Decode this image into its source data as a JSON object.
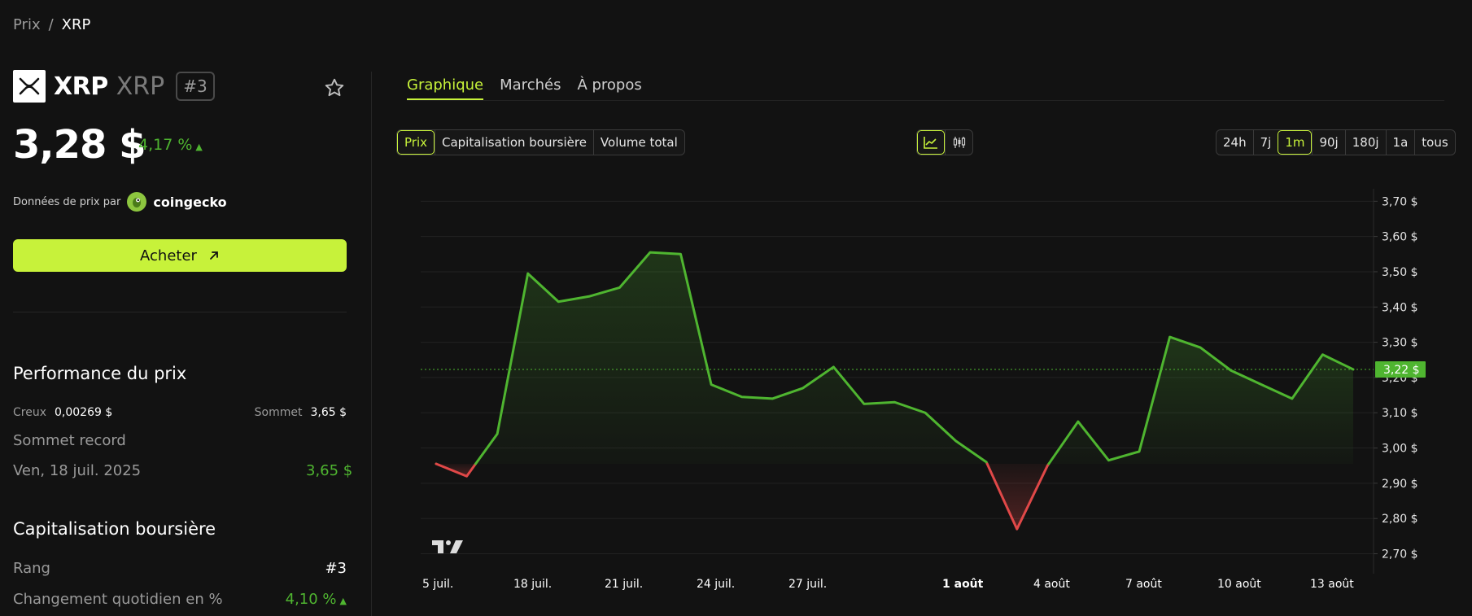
{
  "breadcrumb": {
    "parent": "Prix",
    "separator": "/",
    "current": "XRP"
  },
  "coin": {
    "name": "XRP",
    "symbol": "XRP",
    "rank_badge": "#3",
    "logo_icon": "xrp-logo-icon",
    "favorite_icon": "star-icon"
  },
  "price": {
    "value": "3,28 $",
    "change": "4,17 %",
    "change_arrow": "▲",
    "change_color": "#4fb530"
  },
  "data_source": {
    "label": "Données de prix par",
    "provider": "coingecko",
    "provider_icon": "coingecko-icon"
  },
  "buy": {
    "label": "Acheter",
    "icon": "arrow-up-right-icon",
    "color": "#c7f23a"
  },
  "performance": {
    "title": "Performance du prix",
    "low_label": "Creux",
    "low_value": "0,00269 $",
    "high_label": "Sommet",
    "high_value": "3,65 $",
    "ath_label": "Sommet record",
    "ath_date": "Ven, 18 juil. 2025",
    "ath_value": "3,65 $"
  },
  "market_cap": {
    "title": "Capitalisation boursière",
    "rank_label": "Rang",
    "rank_value": "#3",
    "daily_change_label": "Changement quotidien en %",
    "daily_change_value": "4,10 %",
    "daily_change_arrow": "▲"
  },
  "tabs": [
    {
      "label": "Graphique",
      "active": true
    },
    {
      "label": "Marchés",
      "active": false
    },
    {
      "label": "À propos",
      "active": false
    }
  ],
  "metrics": [
    {
      "label": "Prix",
      "active": true
    },
    {
      "label": "Capitalisation boursière",
      "active": false
    },
    {
      "label": "Volume total",
      "active": false
    }
  ],
  "chart_types": [
    {
      "icon": "line-chart-icon",
      "active": true
    },
    {
      "icon": "candlestick-icon",
      "active": false
    }
  ],
  "ranges": [
    {
      "label": "24h",
      "active": false
    },
    {
      "label": "7j",
      "active": false
    },
    {
      "label": "1m",
      "active": true
    },
    {
      "label": "90j",
      "active": false
    },
    {
      "label": "180j",
      "active": false
    },
    {
      "label": "1a",
      "active": false
    },
    {
      "label": "tous",
      "active": false
    }
  ],
  "colors": {
    "accent": "#c7f23a",
    "up": "#4fb530",
    "down": "#e04848",
    "background": "#121212"
  },
  "chart_data": {
    "type": "area",
    "x_tick_labels": [
      "5 juil.",
      "18 juil.",
      "21 juil.",
      "24 juil.",
      "27 juil.",
      "1 août",
      "4 août",
      "7 août",
      "10 août",
      "13 août"
    ],
    "y_tick_labels": [
      "3,70 $",
      "3,60 $",
      "3,50 $",
      "3,40 $",
      "3,30 $",
      "3,20 $",
      "3,10 $",
      "3,00 $",
      "2,90 $",
      "2,80 $",
      "2,70 $"
    ],
    "y_ticks": [
      3.7,
      3.6,
      3.5,
      3.4,
      3.3,
      3.2,
      3.1,
      3.0,
      2.9,
      2.8,
      2.7
    ],
    "ylim": [
      2.655,
      3.74
    ],
    "baseline": 2.955,
    "current_price_label": "3,22 $",
    "current_price": 3.223,
    "grid": true,
    "series": [
      {
        "values": [
          2.955,
          2.92,
          3.04,
          3.495,
          3.415,
          3.43,
          3.455,
          3.555,
          3.55,
          3.18,
          3.145,
          3.14,
          3.17,
          3.23,
          3.125,
          3.13,
          3.1,
          3.02,
          2.96,
          2.77,
          2.95,
          3.075,
          2.965,
          2.99,
          3.315,
          3.285,
          3.22,
          3.18,
          3.14,
          3.265,
          3.223
        ]
      }
    ]
  }
}
